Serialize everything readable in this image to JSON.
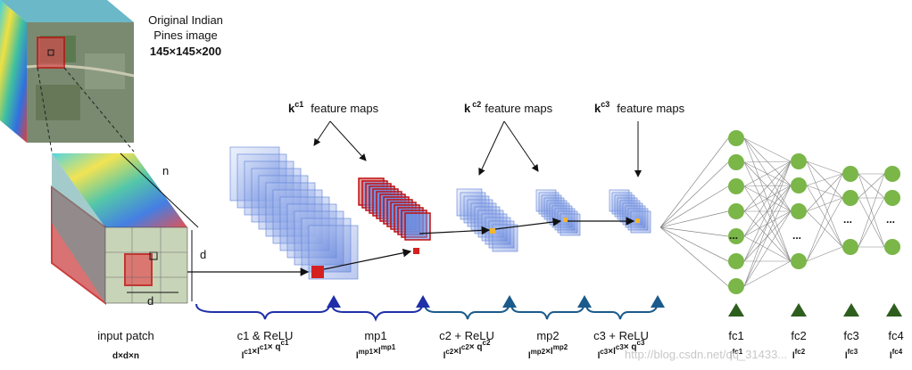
{
  "source_image": {
    "title_line1": "Original Indian",
    "title_line2": "Pines image",
    "size": "145×145×200"
  },
  "feature_map_labels": {
    "k1": "k",
    "k1_sup": "c1",
    "k2": "k",
    "k2_sup": "c2",
    "k3": "k",
    "k3_sup": "c3",
    "text": "feature maps"
  },
  "patch_dims": {
    "n": "n",
    "d_side": "d",
    "d_bottom": "d"
  },
  "stages": [
    {
      "name": "input patch",
      "dims": "d×d×n"
    },
    {
      "name": "c1 & ReLU",
      "dims": "l^c1×l^c1× q^c1"
    },
    {
      "name": "mp1",
      "dims": "l^mp1×l^mp1"
    },
    {
      "name": "c2 + ReLU",
      "dims": "l^c2×l^c2× q^c2"
    },
    {
      "name": "mp2",
      "dims": "l^mp2×l^mp2"
    },
    {
      "name": "c3 + ReLU",
      "dims": "l^c3×l^c3× q^c3"
    }
  ],
  "fc_layers": [
    {
      "name": "fc1",
      "dims": "l^fc1"
    },
    {
      "name": "fc2",
      "dims": "l^fc2"
    },
    {
      "name": "fc3",
      "dims": "l^fc3"
    },
    {
      "name": "fc4",
      "dims": "l^fc4"
    }
  ],
  "ellipsis": "...",
  "watermark": "http://blog.csdn.net/qq_31433...",
  "colors": {
    "blue_arrow": "#1f2fa8",
    "teal_arrow": "#1a5b8c",
    "fc_node": "#7ab648",
    "fc_triangle": "#2e5e1e",
    "highlight": "#d42020",
    "feature_blue": "#6f8ee0"
  }
}
